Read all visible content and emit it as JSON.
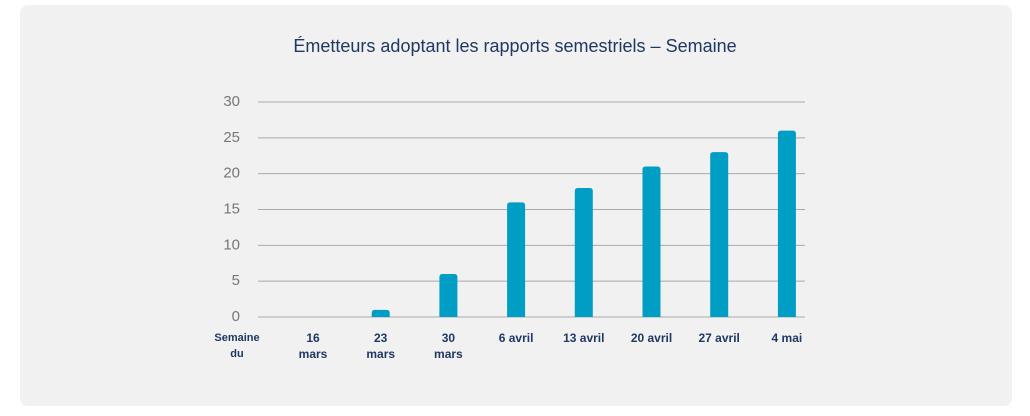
{
  "chart_data": {
    "type": "bar",
    "title": "Émetteurs adoptant les rapports semestriels – Semaine",
    "x_label": "Semaine du",
    "categories": [
      "16 mars",
      "23 mars",
      "30 mars",
      "6 avril",
      "13 avril",
      "20 avril",
      "27 avril",
      "4 mai"
    ],
    "values": [
      0,
      1,
      6,
      16,
      18,
      21,
      23,
      26
    ],
    "color": "#009ec4",
    "ylim": [
      0,
      30
    ],
    "yticks": [
      0,
      5,
      10,
      15,
      20,
      25,
      30
    ],
    "grid": true
  }
}
